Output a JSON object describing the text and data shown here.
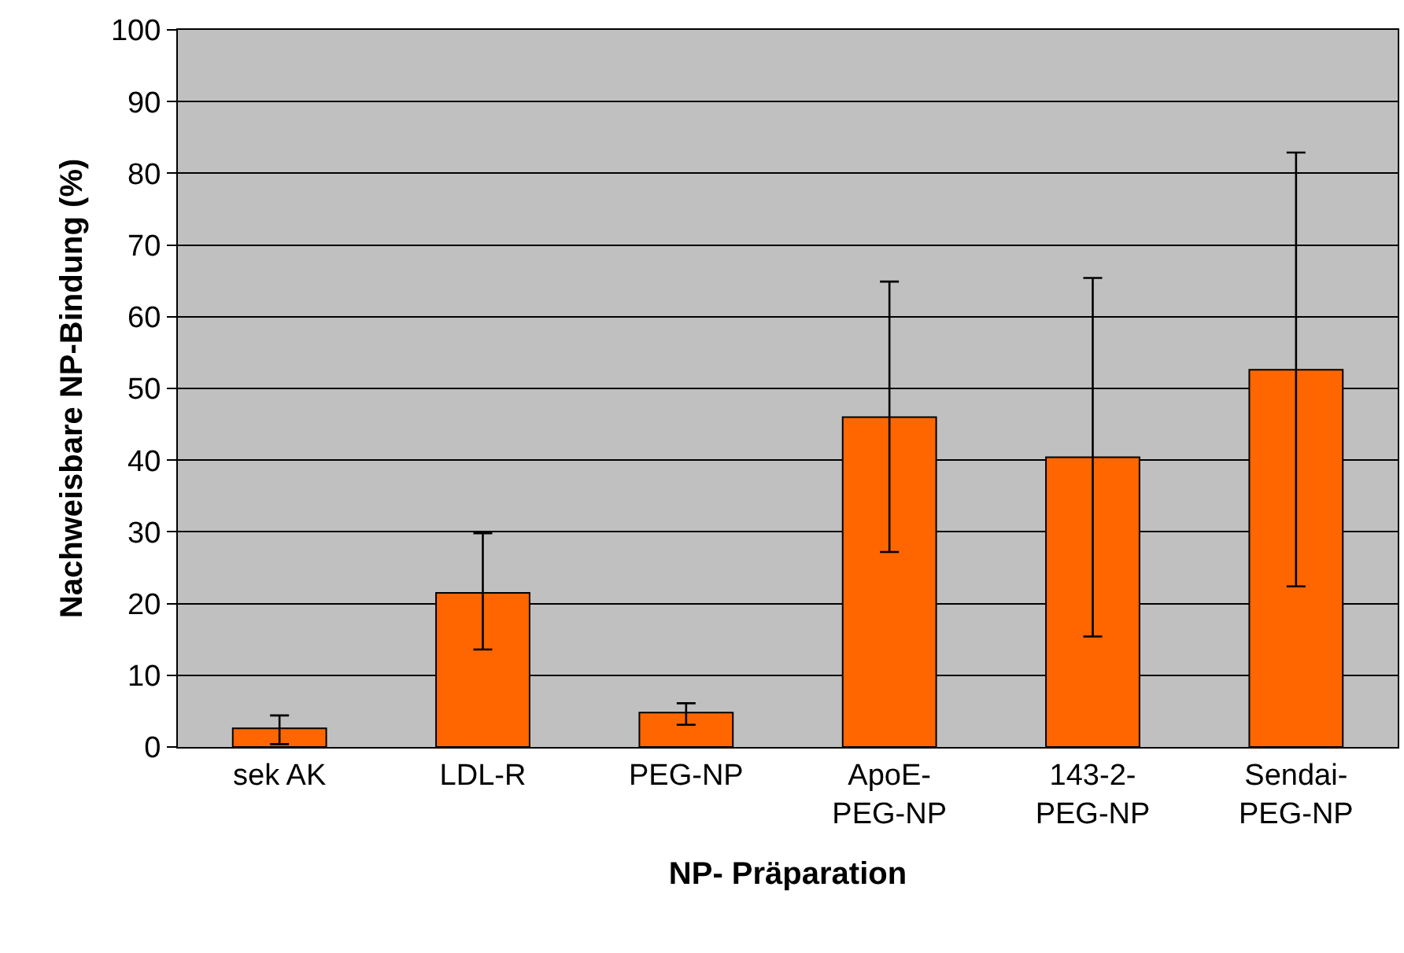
{
  "chart_data": {
    "type": "bar",
    "xlabel": "NP- Präparation",
    "ylabel": "Nachweisbare NP-Bindung (%)",
    "categories": [
      "sek AK",
      "LDL-R",
      "PEG-NP",
      "ApoE-\nPEG-NP",
      "143-2-\nPEG-NP",
      "Sendai-\nPEG-NP"
    ],
    "values": [
      2.6,
      21.5,
      4.8,
      46,
      40.4,
      52.6
    ],
    "errors": [
      [
        0.4,
        4.4
      ],
      [
        13.6,
        29.8
      ],
      [
        3.1,
        6.1
      ],
      [
        27.2,
        64.9
      ],
      [
        15.4,
        65.4
      ],
      [
        22.4,
        82.9
      ]
    ],
    "color": "#ff6600",
    "ylim": [
      0,
      100
    ],
    "yticks": [
      0,
      10,
      20,
      30,
      40,
      50,
      60,
      70,
      80,
      90,
      100
    ],
    "grid": "y",
    "legend": false
  }
}
